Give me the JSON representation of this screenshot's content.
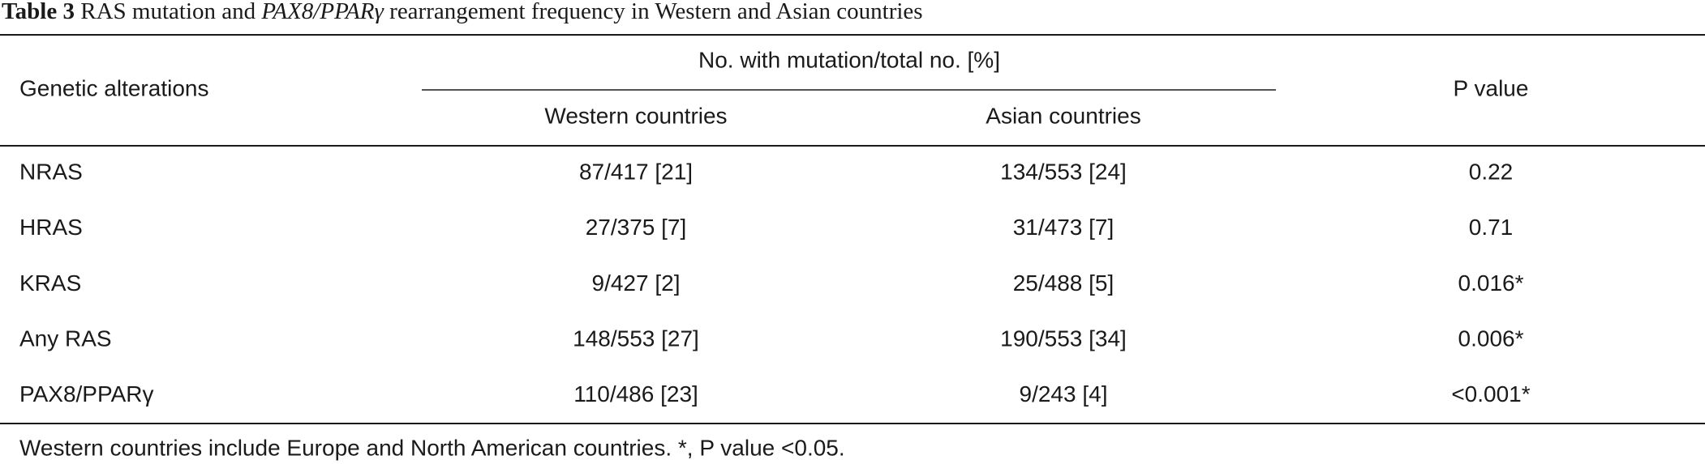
{
  "caption": {
    "label": "Table 3",
    "text_before": "RAS mutation and",
    "italic": "PAX8/PPARγ",
    "text_after": "rearrangement frequency in Western and Asian countries"
  },
  "table": {
    "header": {
      "row_label": "Genetic alterations",
      "group": "No. with mutation/total no. [%]",
      "columns": [
        "Western countries",
        "Asian countries"
      ],
      "p_value": "P value"
    },
    "rows": [
      [
        "NRAS",
        "87/417 [21]",
        "134/553 [24]",
        "0.22"
      ],
      [
        "HRAS",
        "27/375 [7]",
        "31/473 [7]",
        "0.71"
      ],
      [
        "KRAS",
        "9/427 [2]",
        "25/488 [5]",
        "0.016*"
      ],
      [
        "Any RAS",
        "148/553 [27]",
        "190/553 [34]",
        "0.006*"
      ],
      [
        "PAX8/PPARγ",
        "110/486 [23]",
        "9/243 [4]",
        "<0.001*"
      ]
    ]
  },
  "footnote": "Western countries include Europe and North American countries. *, P value <0.05."
}
